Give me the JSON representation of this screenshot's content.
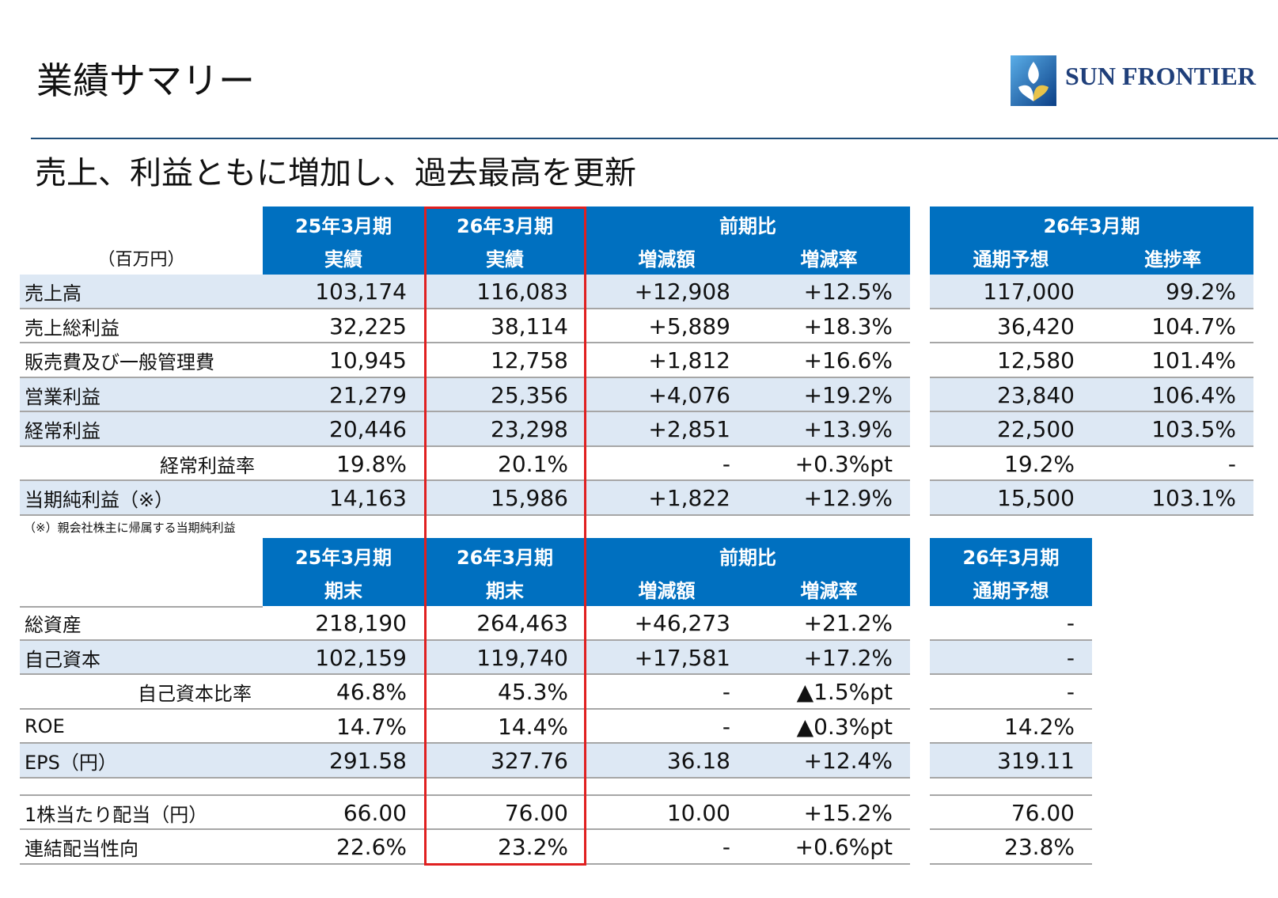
{
  "header": {
    "title": "業績サマリー",
    "subtitle": "売上、利益ともに増加し、過去最高を更新",
    "logo": "SUN FRONTIER"
  },
  "table1": {
    "unit": "（百万円）",
    "header_top": [
      "25年3月期",
      "26年3月期",
      "前期比",
      "26年3月期"
    ],
    "header_bottom": [
      "実績",
      "実績",
      "増減額",
      "増減率",
      "通期予想",
      "進捗率"
    ],
    "rows": [
      [
        "売上高",
        "103,174",
        "116,083",
        "+12,908",
        "+12.5%",
        "117,000",
        "99.2%"
      ],
      [
        "売上総利益",
        "32,225",
        "38,114",
        "+5,889",
        "+18.3%",
        "36,420",
        "104.7%"
      ],
      [
        "販売費及び一般管理費",
        "10,945",
        "12,758",
        "+1,812",
        "+16.6%",
        "12,580",
        "101.4%"
      ],
      [
        "営業利益",
        "21,279",
        "25,356",
        "+4,076",
        "+19.2%",
        "23,840",
        "106.4%"
      ],
      [
        "経常利益",
        "20,446",
        "23,298",
        "+2,851",
        "+13.9%",
        "22,500",
        "103.5%"
      ],
      [
        "経常利益率",
        "19.8%",
        "20.1%",
        "-",
        "+0.3%pt",
        "19.2%",
        "-"
      ],
      [
        "当期純利益（※）",
        "14,163",
        "15,986",
        "+1,822",
        "+12.9%",
        "15,500",
        "103.1%"
      ]
    ],
    "note": "（※）親会社株主に帰属する当期純利益"
  },
  "table2": {
    "header_top": [
      "25年3月期",
      "26年3月期",
      "前期比",
      "26年3月期"
    ],
    "header_bottom": [
      "期末",
      "期末",
      "増減額",
      "増減率",
      "通期予想"
    ],
    "rows": [
      [
        "総資産",
        "218,190",
        "264,463",
        "+46,273",
        "+21.2%",
        "-"
      ],
      [
        "自己資本",
        "102,159",
        "119,740",
        "+17,581",
        "+17.2%",
        "-"
      ],
      [
        "自己資本比率",
        "46.8%",
        "45.3%",
        "-",
        "▲1.5%pt",
        "-"
      ],
      [
        "ROE",
        "14.7%",
        "14.4%",
        "-",
        "▲0.3%pt",
        "14.2%"
      ],
      [
        "EPS（円）",
        "291.58",
        "327.76",
        "36.18",
        "+12.4%",
        "319.11"
      ],
      [
        "1株当たり配当（円）",
        "66.00",
        "76.00",
        "10.00",
        "+15.2%",
        "76.00"
      ],
      [
        "連結配当性向",
        "22.6%",
        "23.2%",
        "-",
        "+0.6%pt",
        "23.8%"
      ]
    ]
  }
}
